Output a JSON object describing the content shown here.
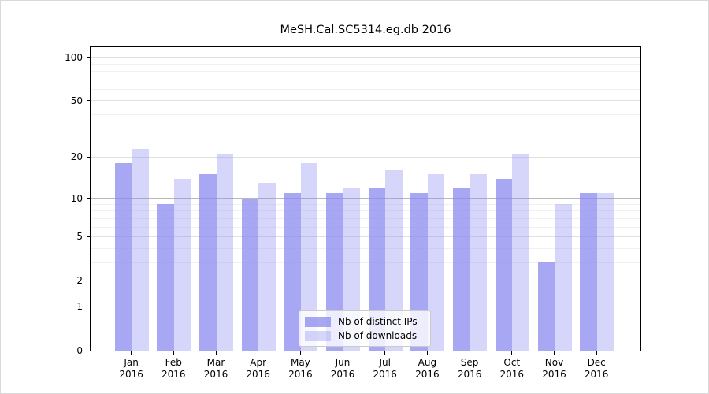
{
  "chart_data": {
    "type": "bar",
    "title": "MeSH.Cal.SC5314.eg.db 2016",
    "categories": [
      "Jan",
      "Feb",
      "Mar",
      "Apr",
      "May",
      "Jun",
      "Jul",
      "Aug",
      "Sep",
      "Oct",
      "Nov",
      "Dec"
    ],
    "x_year_label": "2016",
    "series": [
      {
        "name": "Nb of distinct IPs",
        "color": "rgba(138,138,240,0.75)",
        "values": [
          18,
          9,
          15,
          10,
          11,
          11,
          12,
          11,
          12,
          14,
          3,
          11
        ]
      },
      {
        "name": "Nb of downloads",
        "color": "rgba(138,138,240,0.35)",
        "values": [
          23,
          14,
          21,
          13,
          18,
          12,
          16,
          15,
          15,
          21,
          9,
          11
        ]
      }
    ],
    "yscale": "log10(value+1)",
    "yticks": [
      100,
      50,
      20,
      10,
      5,
      2,
      1,
      0
    ],
    "ylim": [
      0,
      117
    ],
    "gridlines": {
      "strong": [
        1,
        10
      ],
      "normal": [
        2,
        5,
        20,
        50,
        100
      ],
      "faint": [
        3,
        4,
        6,
        7,
        8,
        9,
        30,
        40,
        60,
        70,
        80,
        90
      ]
    },
    "grid": true,
    "legend_position": "bottom-center"
  }
}
